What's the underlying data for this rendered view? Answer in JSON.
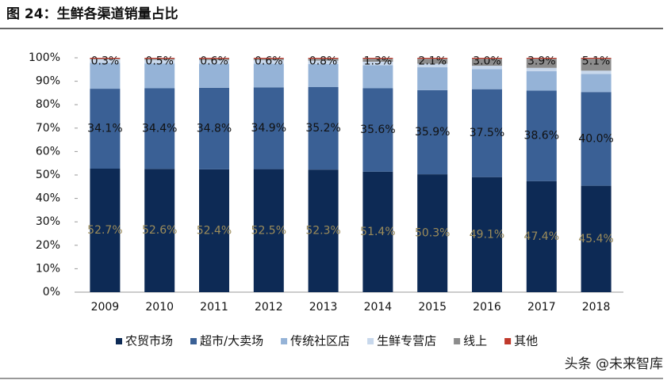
{
  "header": {
    "title": "图 24：生鲜各渠道销量占比"
  },
  "chart_data": {
    "type": "stacked_bar",
    "categories": [
      "2009",
      "2010",
      "2011",
      "2012",
      "2013",
      "2014",
      "2015",
      "2016",
      "2017",
      "2018"
    ],
    "series": [
      {
        "name": "农贸市场",
        "color": "#0d2a55",
        "label_color": "#9c8c5a",
        "values": [
          52.7,
          52.6,
          52.4,
          52.5,
          52.3,
          51.4,
          50.3,
          49.1,
          47.4,
          45.4
        ],
        "value_labels": [
          "52.7%",
          "52.6%",
          "52.4%",
          "52.5%",
          "52.3%",
          "51.4%",
          "50.3%",
          "49.1%",
          "47.4%",
          "45.4%"
        ]
      },
      {
        "name": "超市/大卖场",
        "color": "#3a6095",
        "label_color": "#111111",
        "values": [
          34.1,
          34.4,
          34.8,
          34.9,
          35.2,
          35.6,
          35.9,
          37.5,
          38.6,
          40.0
        ],
        "value_labels": [
          "34.1%",
          "34.4%",
          "34.8%",
          "34.9%",
          "35.2%",
          "35.6%",
          "35.9%",
          "37.5%",
          "38.6%",
          "40.0%"
        ]
      },
      {
        "name": "传统社区店",
        "color": "#95b3d7",
        "values": [
          11.0,
          10.6,
          10.3,
          10.1,
          9.8,
          9.8,
          9.8,
          8.5,
          8.3,
          7.7
        ]
      },
      {
        "name": "生鲜专营店",
        "color": "#c8d8ec",
        "values": [
          1.5,
          1.5,
          1.5,
          1.5,
          1.5,
          1.5,
          1.5,
          1.5,
          1.4,
          1.4
        ]
      },
      {
        "name": "线上",
        "color": "#8c8c8c",
        "label_color": "#111111",
        "values": [
          0.3,
          0.5,
          0.6,
          0.6,
          0.8,
          1.3,
          2.1,
          3.0,
          3.9,
          5.1
        ],
        "value_labels": [
          "0.3%",
          "0.5%",
          "0.6%",
          "0.6%",
          "0.8%",
          "1.3%",
          "2.1%",
          "3.0%",
          "3.9%",
          "5.1%"
        ]
      },
      {
        "name": "其他",
        "color": "#c0392b",
        "values": [
          0.4,
          0.4,
          0.4,
          0.4,
          0.4,
          0.4,
          0.4,
          0.4,
          0.4,
          0.4
        ]
      }
    ],
    "ylim": [
      0,
      100
    ],
    "yticks": [
      {
        "value": 0,
        "label": "0%"
      },
      {
        "value": 10,
        "label": "10%"
      },
      {
        "value": 20,
        "label": "20%"
      },
      {
        "value": 30,
        "label": "30%"
      },
      {
        "value": 40,
        "label": "40%"
      },
      {
        "value": 50,
        "label": "50%"
      },
      {
        "value": 60,
        "label": "60%"
      },
      {
        "value": 70,
        "label": "70%"
      },
      {
        "value": 80,
        "label": "80%"
      },
      {
        "value": 90,
        "label": "90%"
      },
      {
        "value": 100,
        "label": "100%"
      }
    ],
    "legend": "bottom"
  },
  "watermark": "头条 @未来智库"
}
